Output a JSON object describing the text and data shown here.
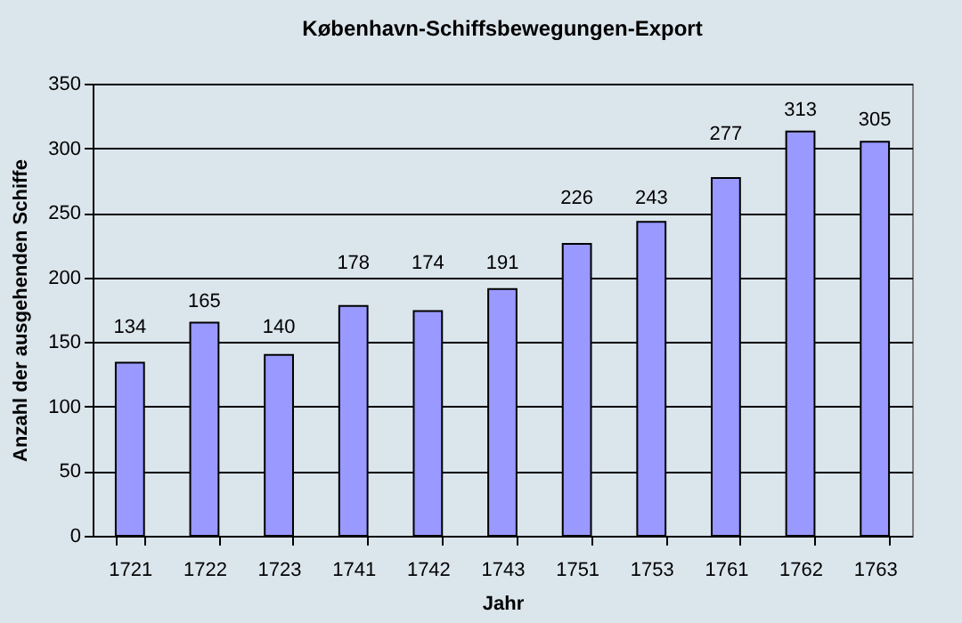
{
  "chart_data": {
    "type": "bar",
    "title": "København-Schiffsbewegungen-Export",
    "xlabel": "Jahr",
    "ylabel": "Anzahl der ausgehenden Schiffe",
    "categories": [
      "1721",
      "1722",
      "1723",
      "1741",
      "1742",
      "1743",
      "1751",
      "1753",
      "1761",
      "1762",
      "1763"
    ],
    "values": [
      134,
      165,
      140,
      178,
      174,
      191,
      226,
      243,
      277,
      313,
      305
    ],
    "color": "#9999ff",
    "ylim": [
      0,
      350
    ],
    "yticks": [
      0,
      50,
      100,
      150,
      200,
      250,
      300,
      350
    ],
    "grid": "y",
    "data_labels": true
  }
}
